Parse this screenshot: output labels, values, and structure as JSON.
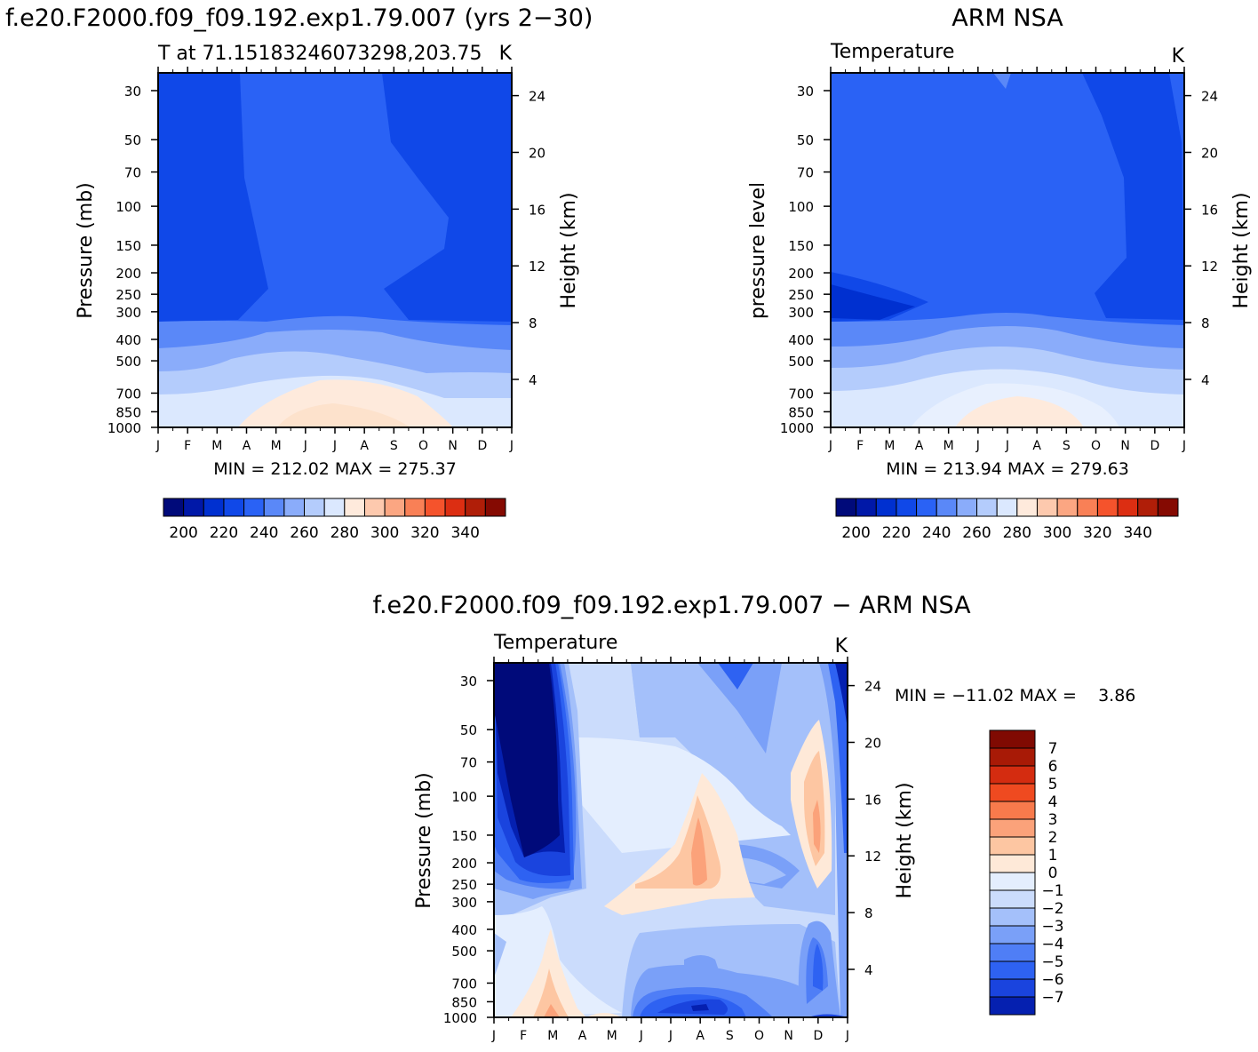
{
  "header": {
    "left_title": "f.e20.F2000.f09_f09.192.exp1.79.007 (yrs 2−30)",
    "right_title": "ARM NSA",
    "diff_title": "f.e20.F2000.f09_f09.192.exp1.79.007 − ARM NSA"
  },
  "colors": {
    "temp_levels": [
      "#000a7a",
      "#0018a8",
      "#0030d0",
      "#1048e8",
      "#2a62f5",
      "#5a88f8",
      "#8aacfa",
      "#b4ccfc",
      "#dbe8fe",
      "#feeadc",
      "#fdc9ae",
      "#fba682",
      "#f98056",
      "#f5532c",
      "#dc2e12",
      "#b01e08",
      "#850a02"
    ],
    "diff_levels": [
      "#000a7a",
      "#0520b0",
      "#1a44de",
      "#2e62f2",
      "#4f7ef6",
      "#7aa0f8",
      "#a4c0fa",
      "#cbdcfc",
      "#e4eefe",
      "#fee9d8",
      "#fdc6a2",
      "#fba27a",
      "#f87a4c",
      "#ef4a20",
      "#d42c10",
      "#a81a06",
      "#800a02"
    ]
  },
  "chart_data": [
    {
      "type": "heatmap",
      "title": "T at 71.15183246073298,203.75",
      "units": "K",
      "ylabel_left": "Pressure (mb)",
      "ylabel_right": "Height (km)",
      "x_ticks": [
        "J",
        "F",
        "M",
        "A",
        "M",
        "J",
        "J",
        "A",
        "S",
        "O",
        "N",
        "D",
        "J"
      ],
      "y_ticks": [
        "30",
        "50",
        "70",
        "100",
        "150",
        "200",
        "250",
        "300",
        "400",
        "500",
        "700",
        "850",
        "1000"
      ],
      "y_ticks_right": [
        "24",
        "20",
        "16",
        "12",
        "8",
        "4"
      ],
      "stats": "MIN = 212.02 MAX = 275.37",
      "colorbar_labels": [
        "200",
        "220",
        "240",
        "260",
        "280",
        "300",
        "320",
        "340"
      ],
      "min": 212.02,
      "max": 275.37
    },
    {
      "type": "heatmap",
      "title": "Temperature",
      "units": "K",
      "ylabel_left": "pressure level",
      "ylabel_right": "Height (km)",
      "x_ticks": [
        "J",
        "F",
        "M",
        "A",
        "M",
        "J",
        "J",
        "A",
        "S",
        "O",
        "N",
        "D",
        "J"
      ],
      "y_ticks": [
        "30",
        "50",
        "70",
        "100",
        "150",
        "200",
        "250",
        "300",
        "400",
        "500",
        "700",
        "850",
        "1000"
      ],
      "y_ticks_right": [
        "24",
        "20",
        "16",
        "12",
        "8",
        "4"
      ],
      "stats": "MIN = 213.94 MAX = 279.63",
      "colorbar_labels": [
        "200",
        "220",
        "240",
        "260",
        "280",
        "300",
        "320",
        "340"
      ],
      "min": 213.94,
      "max": 279.63
    },
    {
      "type": "heatmap",
      "title": "Temperature",
      "units": "K",
      "ylabel_left": "Pressure (mb)",
      "ylabel_right": "Height (km)",
      "x_ticks": [
        "J",
        "F",
        "M",
        "A",
        "M",
        "J",
        "J",
        "A",
        "S",
        "O",
        "N",
        "D",
        "J"
      ],
      "y_ticks": [
        "30",
        "50",
        "70",
        "100",
        "150",
        "200",
        "250",
        "300",
        "400",
        "500",
        "700",
        "850",
        "1000"
      ],
      "y_ticks_right": [
        "24",
        "20",
        "16",
        "12",
        "8",
        "4"
      ],
      "stats": "MIN = −11.02 MAX =    3.86",
      "colorbar_labels": [
        "7",
        "6",
        "5",
        "4",
        "3",
        "2",
        "1",
        "0",
        "−1",
        "−2",
        "−3",
        "−4",
        "−5",
        "−6",
        "−7"
      ],
      "min": -11.02,
      "max": 3.86
    }
  ]
}
